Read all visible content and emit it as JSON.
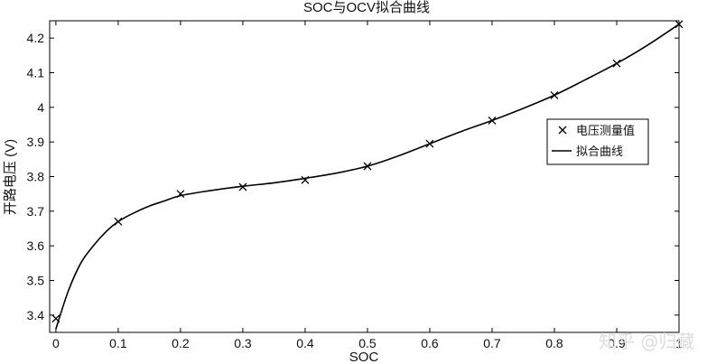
{
  "chart_data": {
    "type": "line",
    "title": "SOC与OCV拟合曲线",
    "xlabel": "SOC",
    "ylabel": "开路电压 (V)",
    "xlim": [
      -0.01,
      1.0
    ],
    "ylim": [
      3.35,
      4.25
    ],
    "xticks": [
      "0",
      "0.1",
      "0.2",
      "0.3",
      "0.4",
      "0.5",
      "0.6",
      "0.7",
      "0.8",
      "0.9",
      "1"
    ],
    "yticks": [
      "3.4",
      "3.5",
      "3.6",
      "3.7",
      "3.8",
      "3.9",
      "4",
      "4.1",
      "4.2"
    ],
    "grid": false,
    "legend_position": "right",
    "series": [
      {
        "name": "电压测量值",
        "marker": "x",
        "x": [
          0,
          0.1,
          0.2,
          0.3,
          0.4,
          0.5,
          0.6,
          0.7,
          0.8,
          0.9,
          1.0
        ],
        "y": [
          3.39,
          3.67,
          3.75,
          3.77,
          3.79,
          3.83,
          3.895,
          3.962,
          4.035,
          4.127,
          4.24
        ]
      },
      {
        "name": "拟合曲线",
        "style": "solid",
        "x": [
          0,
          0.02,
          0.04,
          0.06,
          0.08,
          0.1,
          0.125,
          0.15,
          0.175,
          0.2,
          0.25,
          0.3,
          0.35,
          0.4,
          0.45,
          0.5,
          0.55,
          0.6,
          0.65,
          0.7,
          0.75,
          0.8,
          0.85,
          0.9,
          0.95,
          1.0
        ],
        "y": [
          3.36,
          3.47,
          3.55,
          3.6,
          3.64,
          3.67,
          3.695,
          3.715,
          3.73,
          3.745,
          3.76,
          3.772,
          3.782,
          3.795,
          3.81,
          3.83,
          3.86,
          3.895,
          3.93,
          3.962,
          3.997,
          4.035,
          4.08,
          4.127,
          4.18,
          4.24
        ]
      }
    ]
  },
  "watermark": "知乎 @归藏"
}
